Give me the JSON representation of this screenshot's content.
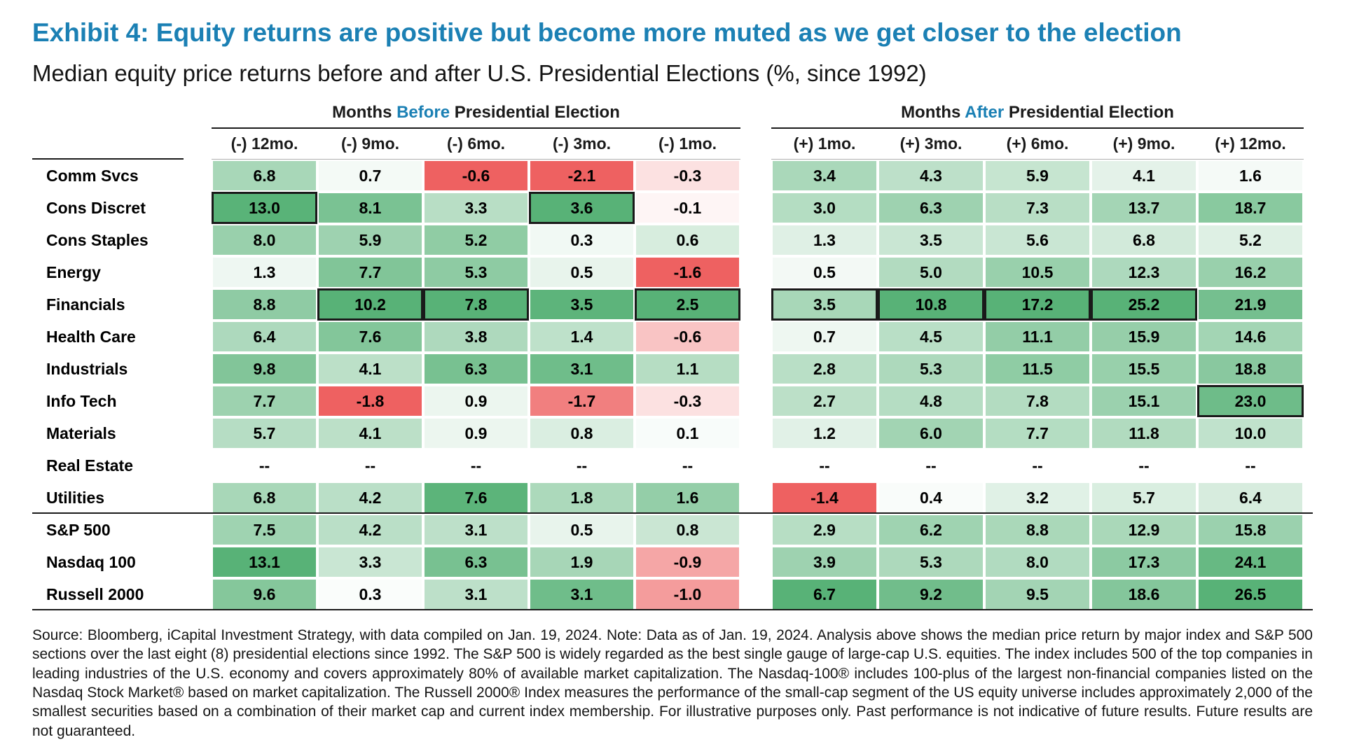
{
  "header": {
    "title": "Exhibit 4: Equity returns are positive but become more muted as we get closer to the election",
    "subtitle": "Median equity price returns before and after U.S. Presidential Elections (%, since 1992)"
  },
  "table": {
    "before_header": {
      "pre": "Months ",
      "accent": "Before",
      "post": " Presidential Election"
    },
    "after_header": {
      "pre": "Months ",
      "accent": "After",
      "post": " Presidential Election"
    }
  },
  "colors": {
    "accent_blue": "#1b80b4",
    "green_max": "#58b277",
    "red_max": "#ee6161",
    "highlight_border": "#1a1a1a"
  },
  "chart_data": {
    "type": "heatmap",
    "title": "Median equity price returns before and after U.S. Presidential Elections (%, since 1992)",
    "units": "%",
    "columns_before": [
      "(-) 12mo.",
      "(-) 9mo.",
      "(-) 6mo.",
      "(-) 3mo.",
      "(-) 1mo."
    ],
    "columns_after": [
      "(+) 1mo.",
      "(+) 3mo.",
      "(+) 6mo.",
      "(+) 9mo.",
      "(+) 12mo."
    ],
    "null_display": "--",
    "color_scaling": "per-column: positive values shade white to green toward column max, negative values shade white to red toward column min",
    "rows": [
      {
        "label": "Comm Svcs",
        "before": [
          6.8,
          0.7,
          -0.6,
          -2.1,
          -0.3
        ],
        "after": [
          3.4,
          4.3,
          5.9,
          4.1,
          1.6
        ]
      },
      {
        "label": "Cons Discret",
        "before": [
          13.0,
          8.1,
          3.3,
          3.6,
          -0.1
        ],
        "after": [
          3.0,
          6.3,
          7.3,
          13.7,
          18.7
        ]
      },
      {
        "label": "Cons Staples",
        "before": [
          8.0,
          5.9,
          5.2,
          0.3,
          0.6
        ],
        "after": [
          1.3,
          3.5,
          5.6,
          6.8,
          5.2
        ]
      },
      {
        "label": "Energy",
        "before": [
          1.3,
          7.7,
          5.3,
          0.5,
          -1.6
        ],
        "after": [
          0.5,
          5.0,
          10.5,
          12.3,
          16.2
        ]
      },
      {
        "label": "Financials",
        "before": [
          8.8,
          10.2,
          7.8,
          3.5,
          2.5
        ],
        "after": [
          3.5,
          10.8,
          17.2,
          25.2,
          21.9
        ]
      },
      {
        "label": "Health Care",
        "before": [
          6.4,
          7.6,
          3.8,
          1.4,
          -0.6
        ],
        "after": [
          0.7,
          4.5,
          11.1,
          15.9,
          14.6
        ]
      },
      {
        "label": "Industrials",
        "before": [
          9.8,
          4.1,
          6.3,
          3.1,
          1.1
        ],
        "after": [
          2.8,
          5.3,
          11.5,
          15.5,
          18.8
        ]
      },
      {
        "label": "Info Tech",
        "before": [
          7.7,
          -1.8,
          0.9,
          -1.7,
          -0.3
        ],
        "after": [
          2.7,
          4.8,
          7.8,
          15.1,
          23.0
        ]
      },
      {
        "label": "Materials",
        "before": [
          5.7,
          4.1,
          0.9,
          0.8,
          0.1
        ],
        "after": [
          1.2,
          6.0,
          7.7,
          11.8,
          10.0
        ]
      },
      {
        "label": "Real Estate",
        "before": [
          null,
          null,
          null,
          null,
          null
        ],
        "after": [
          null,
          null,
          null,
          null,
          null
        ]
      },
      {
        "label": "Utilities",
        "before": [
          6.8,
          4.2,
          7.6,
          1.8,
          1.6
        ],
        "after": [
          -1.4,
          0.4,
          3.2,
          5.7,
          6.4
        ]
      },
      {
        "label": "S&P 500",
        "before": [
          7.5,
          4.2,
          3.1,
          0.5,
          0.8
        ],
        "after": [
          2.9,
          6.2,
          8.8,
          12.9,
          15.8
        ]
      },
      {
        "label": "Nasdaq 100",
        "before": [
          13.1,
          3.3,
          6.3,
          1.9,
          -0.9
        ],
        "after": [
          3.9,
          5.3,
          8.0,
          17.3,
          24.1
        ]
      },
      {
        "label": "Russell 2000",
        "before": [
          9.6,
          0.3,
          3.1,
          3.1,
          -1.0
        ],
        "after": [
          6.7,
          9.2,
          9.5,
          18.6,
          26.5
        ]
      }
    ],
    "section_break_after": [
      "Utilities",
      "Russell 2000"
    ],
    "highlighted_cells": [
      {
        "row": "Cons Discret",
        "side": "before",
        "col": 0
      },
      {
        "row": "Cons Discret",
        "side": "before",
        "col": 3
      },
      {
        "row": "Financials",
        "side": "before",
        "col": 1
      },
      {
        "row": "Financials",
        "side": "before",
        "col": 2
      },
      {
        "row": "Financials",
        "side": "before",
        "col": 4
      },
      {
        "row": "Financials",
        "side": "after",
        "col": 0
      },
      {
        "row": "Financials",
        "side": "after",
        "col": 1
      },
      {
        "row": "Financials",
        "side": "after",
        "col": 2
      },
      {
        "row": "Financials",
        "side": "after",
        "col": 3
      },
      {
        "row": "Info Tech",
        "side": "after",
        "col": 4
      }
    ]
  },
  "footer": {
    "source": "Source: Bloomberg, iCapital Investment Strategy, with data compiled on Jan. 19, 2024. Note: Data as of Jan. 19, 2024. Analysis above shows the median price return by major index and S&P 500 sections over the last eight (8) presidential elections since 1992. The S&P 500 is widely regarded as the best single gauge of large-cap U.S. equities. The index includes 500 of the top companies in leading industries of the U.S. economy and covers approximately 80% of available market capitalization. The Nasdaq-100® includes 100-plus of the largest non-financial companies listed on the Nasdaq Stock Market® based on market capitalization. The Russell 2000® Index measures the performance of the small-cap segment of the US equity universe includes approximately 2,000 of the smallest securities based on a combination of their market cap and current index membership. For illustrative purposes only. Past performance is not indicative of future results. Future results are not guaranteed."
  }
}
